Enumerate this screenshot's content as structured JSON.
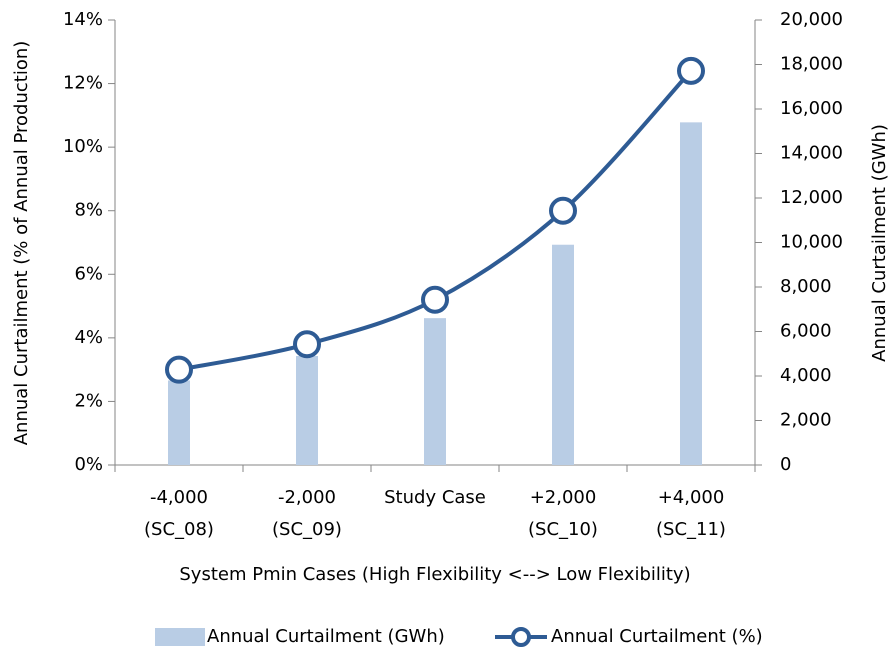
{
  "chart_data": {
    "type": "bar-line",
    "categories": [
      [
        "-4,000",
        "(SC_08)"
      ],
      [
        "-2,000",
        "(SC_09)"
      ],
      [
        "Study Case"
      ],
      [
        "+2,000",
        "(SC_10)"
      ],
      [
        "+4,000",
        "(SC_11)"
      ]
    ],
    "x_label": "System Pmin Cases (High Flexibility <--> Low Flexibility)",
    "y_label": "Annual Curtailment (% of Annual Production)",
    "y2_label": "Annual Curtailment (GWh)",
    "ylim": [
      0,
      14
    ],
    "yticks": [
      {
        "value": 0,
        "label": "0%"
      },
      {
        "value": 2,
        "label": "2%"
      },
      {
        "value": 4,
        "label": "4%"
      },
      {
        "value": 6,
        "label": "6%"
      },
      {
        "value": 8,
        "label": "8%"
      },
      {
        "value": 10,
        "label": "10%"
      },
      {
        "value": 12,
        "label": "12%"
      },
      {
        "value": 14,
        "label": "14%"
      }
    ],
    "y2lim": [
      0,
      20000
    ],
    "y2ticks": [
      0,
      {
        "value": 2000,
        "label": "2,000"
      },
      {
        "value": 4000,
        "label": "4,000"
      },
      {
        "value": 6000,
        "label": "6,000"
      },
      {
        "value": 8000,
        "label": "8,000"
      },
      {
        "value": 10000,
        "label": "10,000"
      },
      {
        "value": 12000,
        "label": "12,000"
      },
      {
        "value": 14000,
        "label": "14,000"
      },
      {
        "value": 16000,
        "label": "16,000"
      },
      {
        "value": 18000,
        "label": "18,000"
      },
      {
        "value": 20000,
        "label": "20,000"
      }
    ],
    "series": [
      {
        "name": "Annual Curtailment (GWh)",
        "type": "bar",
        "axis": "y2",
        "color": "#b9cde5",
        "values": [
          3800,
          4900,
          6600,
          9900,
          15400
        ]
      },
      {
        "name": "Annual Curtailment (%)",
        "type": "line",
        "color": "#2e5b94",
        "values": [
          3.0,
          3.8,
          5.2,
          8.0,
          12.4
        ]
      }
    ]
  }
}
